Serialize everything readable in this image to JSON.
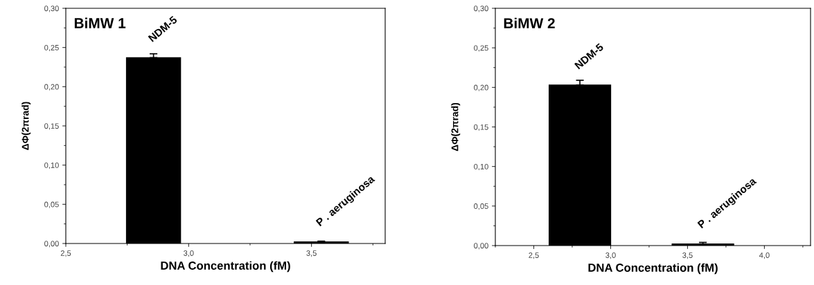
{
  "chart_data": [
    {
      "type": "bar",
      "title": "BiMW 1",
      "xlabel": "DNA Concentration (fM)",
      "ylabel": "ΔΦ(2πrad)",
      "x": [
        2.857,
        3.54
      ],
      "values": [
        0.237,
        0.002
      ],
      "color": "#000000",
      "errors": [
        [
          0.237,
          0.242
        ],
        [
          0.002,
          0.003
        ]
      ],
      "xlim": [
        2.5,
        3.8
      ],
      "xticks": [
        {
          "value": 2.5,
          "label": "2,5"
        },
        {
          "value": 3.0,
          "label": "3,0"
        },
        {
          "value": 3.5,
          "label": "3,5"
        }
      ],
      "ylim": [
        0,
        0.3
      ],
      "yticks": [
        {
          "value": 0,
          "label": "0,00"
        },
        {
          "value": 0.05,
          "label": "0,05"
        },
        {
          "value": 0.1,
          "label": "0,10"
        },
        {
          "value": 0.15,
          "label": "0,15"
        },
        {
          "value": 0.2,
          "label": "0,20"
        },
        {
          "value": 0.25,
          "label": "0,25"
        },
        {
          "value": 0.3,
          "label": "0,30"
        }
      ],
      "annotations": [
        {
          "text": "NDM-5",
          "x": 2.857,
          "y": 0.237
        },
        {
          "text": "P . aeruginosa",
          "x": 3.54,
          "y": 0.002
        }
      ],
      "grid": false,
      "legend": false
    },
    {
      "type": "bar",
      "title": "BiMW 2",
      "xlabel": "DNA Concentration (fM)",
      "ylabel": "ΔΦ(2πrad)",
      "x": [
        2.8,
        3.6
      ],
      "values": [
        0.203,
        0.002
      ],
      "color": "#000000",
      "errors": [
        [
          0.203,
          0.209
        ],
        [
          0.002,
          0.004
        ]
      ],
      "xlim": [
        2.25,
        4.3
      ],
      "xticks": [
        {
          "value": 2.5,
          "label": "2,5"
        },
        {
          "value": 3.0,
          "label": "3,0"
        },
        {
          "value": 3.5,
          "label": "3,5"
        },
        {
          "value": 4.0,
          "label": "4,0"
        }
      ],
      "ylim": [
        0,
        0.3
      ],
      "yticks": [
        {
          "value": 0,
          "label": "0,00"
        },
        {
          "value": 0.05,
          "label": "0,05"
        },
        {
          "value": 0.1,
          "label": "0,10"
        },
        {
          "value": 0.15,
          "label": "0,15"
        },
        {
          "value": 0.2,
          "label": "0,20"
        },
        {
          "value": 0.25,
          "label": "0,25"
        },
        {
          "value": 0.3,
          "label": "0,30"
        }
      ],
      "annotations": [
        {
          "text": "NDM-5",
          "x": 2.8,
          "y": 0.203
        },
        {
          "text": "P . aeruginosa",
          "x": 3.6,
          "y": 0.002
        }
      ],
      "grid": false,
      "legend": false
    }
  ]
}
